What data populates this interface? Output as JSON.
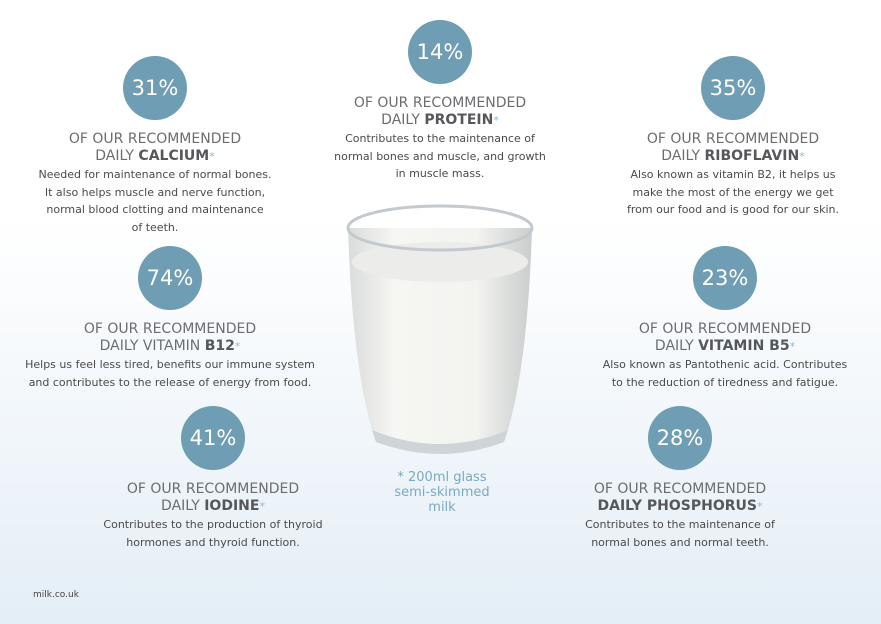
{
  "items": [
    {
      "percent": "14%",
      "heading": "OF OUR RECOMMENDED",
      "line2": [
        {
          "text": "DAILY ",
          "bold": false
        },
        {
          "text": "PROTEIN",
          "bold": true
        }
      ],
      "asterisk": "*",
      "description": [
        "Contributes to the maintenance of",
        "normal bones and muscle, and growth",
        "in muscle mass."
      ]
    },
    {
      "percent": "31%",
      "heading": "OF OUR RECOMMENDED",
      "line2": [
        {
          "text": "DAILY ",
          "bold": false
        },
        {
          "text": "CALCIUM",
          "bold": true
        }
      ],
      "asterisk": "*",
      "description": [
        "Needed for maintenance of normal bones.",
        "It also helps muscle and nerve function,",
        "normal blood clotting and maintenance",
        "of teeth."
      ]
    },
    {
      "percent": "35%",
      "heading": "OF OUR RECOMMENDED",
      "line2": [
        {
          "text": "DAILY ",
          "bold": false
        },
        {
          "text": "RIBOFLAVIN",
          "bold": true
        }
      ],
      "asterisk": "*",
      "description": [
        "Also known as vitamin B2, it helps us",
        "make the most of the energy we get",
        "from our food and is good for our skin."
      ]
    },
    {
      "percent": "74%",
      "heading": "OF OUR RECOMMENDED",
      "line2": [
        {
          "text": "DAILY VITAMIN ",
          "bold": false
        },
        {
          "text": "B12",
          "bold": true
        }
      ],
      "asterisk": "*",
      "description": [
        "Helps us feel less tired, benefits our immune system",
        "and contributes to the release of energy from food."
      ]
    },
    {
      "percent": "23%",
      "heading": "OF OUR RECOMMENDED",
      "line2": [
        {
          "text": "DAILY ",
          "bold": false
        },
        {
          "text": "VITAMIN B5",
          "bold": true
        }
      ],
      "asterisk": "*",
      "description": [
        "Also known as Pantothenic acid. Contributes",
        "to the reduction of tiredness and fatigue."
      ]
    },
    {
      "percent": "41%",
      "heading": "OF OUR RECOMMENDED",
      "line2": [
        {
          "text": "DAILY ",
          "bold": false
        },
        {
          "text": "IODINE",
          "bold": true
        }
      ],
      "asterisk": "*",
      "description": [
        "Contributes to the production of thyroid",
        "hormones and thyroid function."
      ]
    },
    {
      "percent": "28%",
      "heading": "OF OUR RECOMMENDED",
      "line2": [
        {
          "text": "DAILY PHOSPHORUS",
          "bold": true
        }
      ],
      "asterisk": "*",
      "description": [
        "Contributes to the maintenance of",
        "normal bones and normal teeth."
      ]
    }
  ],
  "footnote": [
    "* 200ml glass",
    "semi-skimmed",
    "milk"
  ],
  "source": "milk.co.uk"
}
